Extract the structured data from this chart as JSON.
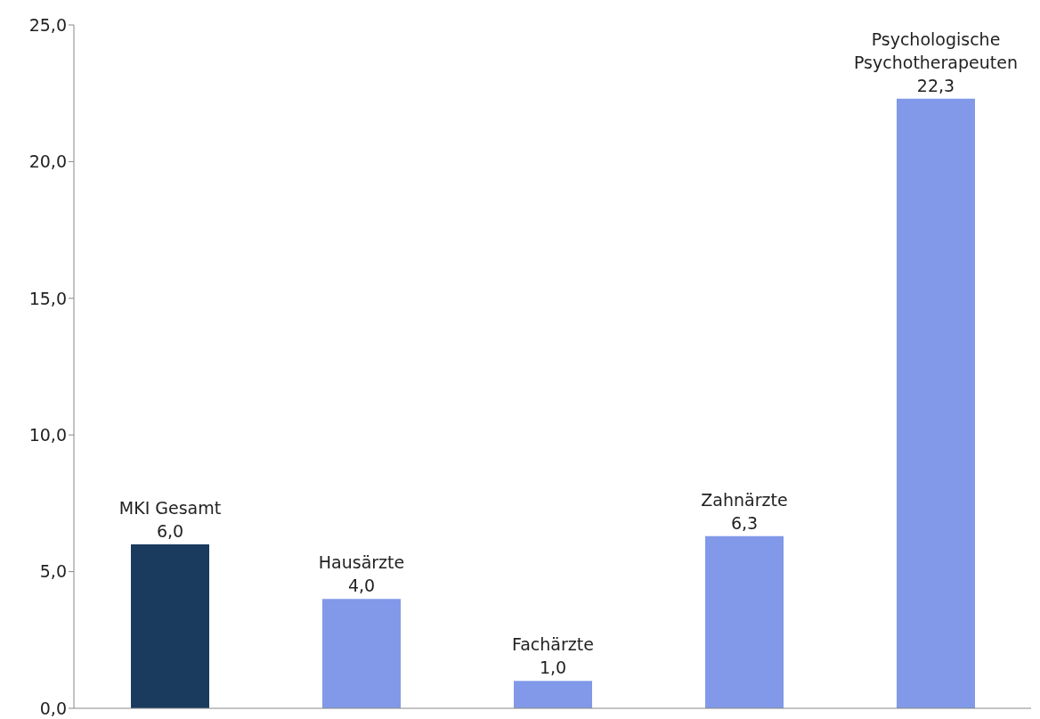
{
  "chart_data": {
    "type": "bar",
    "categories": [
      "MKI Gesamt",
      "Hausärzte",
      "Fachärzte",
      "Zahnärzte",
      "Psychologische Psychotherapeuten"
    ],
    "values": [
      6.0,
      4.0,
      1.0,
      6.3,
      22.3
    ],
    "colors": [
      "#1a3a5e",
      "#8199e8",
      "#8199e8",
      "#8199e8",
      "#8199e8"
    ],
    "value_labels": [
      "6,0",
      "4,0",
      "1,0",
      "6,3",
      "22,3"
    ],
    "ylim": [
      0,
      25
    ],
    "yticks": [
      {
        "value": 0,
        "label": "0,0"
      },
      {
        "value": 5,
        "label": "5,0"
      },
      {
        "value": 10,
        "label": "10,0"
      },
      {
        "value": 15,
        "label": "15,0"
      },
      {
        "value": 20,
        "label": "20,0"
      },
      {
        "value": 25,
        "label": "25,0"
      }
    ],
    "tick_labels": "y",
    "grid": false,
    "legend": false
  }
}
